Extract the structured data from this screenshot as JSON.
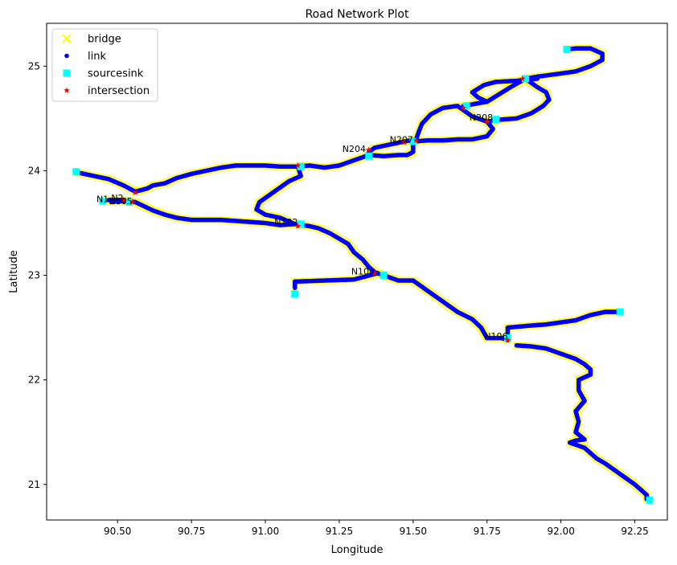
{
  "chart_data": {
    "type": "scatter",
    "title": "Road Network Plot",
    "xlabel": "Longitude",
    "ylabel": "Latitude",
    "xlim": [
      90.26,
      92.36
    ],
    "ylim": [
      20.66,
      25.41
    ],
    "xticks": [
      90.5,
      90.75,
      91.0,
      91.25,
      91.5,
      91.75,
      92.0,
      92.25
    ],
    "xtick_labels": [
      "90.50",
      "90.75",
      "91.00",
      "91.25",
      "91.50",
      "91.75",
      "92.00",
      "92.25"
    ],
    "yticks": [
      21,
      22,
      23,
      24,
      25
    ],
    "ytick_labels": [
      "21",
      "22",
      "23",
      "24",
      "25"
    ],
    "grid": false,
    "legend": {
      "position": "top-left",
      "entries": [
        {
          "label": "bridge",
          "marker": "x",
          "color": "#ffff00"
        },
        {
          "label": "link",
          "marker": "circle",
          "color": "#0000ff"
        },
        {
          "label": "sourcesink",
          "marker": "square",
          "color": "#00ffff"
        },
        {
          "label": "intersection",
          "marker": "star",
          "color": "#ff0000"
        }
      ]
    },
    "roads": [
      {
        "name": "main",
        "points": [
          [
            90.37,
            23.98
          ],
          [
            90.42,
            23.95
          ],
          [
            90.47,
            23.92
          ],
          [
            90.52,
            23.86
          ],
          [
            90.56,
            23.8
          ],
          [
            90.6,
            23.83
          ],
          [
            90.62,
            23.86
          ],
          [
            90.66,
            23.88
          ],
          [
            90.7,
            23.93
          ],
          [
            90.75,
            23.97
          ],
          [
            90.8,
            24.0
          ],
          [
            90.85,
            24.03
          ],
          [
            90.9,
            24.05
          ],
          [
            91.0,
            24.05
          ],
          [
            91.05,
            24.04
          ],
          [
            91.1,
            24.04
          ],
          [
            91.15,
            24.05
          ],
          [
            91.2,
            24.03
          ],
          [
            91.25,
            24.05
          ],
          [
            91.3,
            24.1
          ],
          [
            91.35,
            24.15
          ],
          [
            91.4,
            24.14
          ],
          [
            91.45,
            24.15
          ],
          [
            91.48,
            24.15
          ],
          [
            91.5,
            24.18
          ],
          [
            91.5,
            24.28
          ],
          [
            91.55,
            24.29
          ],
          [
            91.6,
            24.29
          ],
          [
            91.65,
            24.3
          ],
          [
            91.7,
            24.3
          ],
          [
            91.75,
            24.33
          ],
          [
            91.77,
            24.4
          ],
          [
            91.75,
            24.47
          ],
          [
            91.7,
            24.52
          ],
          [
            91.65,
            24.62
          ],
          [
            91.6,
            24.6
          ],
          [
            91.56,
            24.54
          ],
          [
            91.53,
            24.45
          ],
          [
            91.52,
            24.38
          ],
          [
            91.51,
            24.3
          ],
          [
            91.47,
            24.28
          ],
          [
            91.42,
            24.25
          ],
          [
            91.37,
            24.22
          ],
          [
            91.35,
            24.18
          ]
        ]
      },
      {
        "name": "north_loop",
        "points": [
          [
            91.67,
            24.62
          ],
          [
            91.75,
            24.66
          ],
          [
            91.83,
            24.8
          ],
          [
            91.88,
            24.88
          ],
          [
            91.92,
            24.9
          ],
          [
            92.0,
            24.93
          ],
          [
            92.05,
            24.95
          ],
          [
            92.1,
            25.0
          ],
          [
            92.14,
            25.06
          ],
          [
            92.14,
            25.12
          ],
          [
            92.1,
            25.17
          ],
          [
            92.05,
            25.17
          ],
          [
            92.02,
            25.16
          ]
        ]
      },
      {
        "name": "east_loop",
        "points": [
          [
            91.88,
            24.88
          ],
          [
            91.92,
            24.8
          ],
          [
            91.95,
            24.75
          ],
          [
            91.96,
            24.68
          ],
          [
            91.94,
            24.62
          ],
          [
            91.9,
            24.55
          ],
          [
            91.85,
            24.5
          ],
          [
            91.8,
            24.49
          ],
          [
            91.75,
            24.47
          ]
        ]
      },
      {
        "name": "left_pass",
        "points": [
          [
            91.92,
            24.88
          ],
          [
            91.85,
            24.86
          ],
          [
            91.78,
            24.85
          ],
          [
            91.74,
            24.82
          ],
          [
            91.7,
            24.75
          ],
          [
            91.72,
            24.7
          ],
          [
            91.75,
            24.66
          ]
        ]
      },
      {
        "name": "south_main",
        "points": [
          [
            90.47,
            23.72
          ],
          [
            90.52,
            23.72
          ],
          [
            90.56,
            23.7
          ],
          [
            90.62,
            23.62
          ],
          [
            90.66,
            23.58
          ],
          [
            90.7,
            23.55
          ],
          [
            90.75,
            23.53
          ],
          [
            90.85,
            23.53
          ],
          [
            90.95,
            23.51
          ],
          [
            91.0,
            23.5
          ],
          [
            91.05,
            23.48
          ],
          [
            91.1,
            23.49
          ],
          [
            91.15,
            23.47
          ],
          [
            91.18,
            23.45
          ],
          [
            91.22,
            23.4
          ],
          [
            91.25,
            23.35
          ],
          [
            91.28,
            23.3
          ],
          [
            91.3,
            23.22
          ],
          [
            91.33,
            23.15
          ],
          [
            91.35,
            23.08
          ],
          [
            91.37,
            23.03
          ],
          [
            91.4,
            23.0
          ],
          [
            91.45,
            22.95
          ],
          [
            91.5,
            22.95
          ],
          [
            91.55,
            22.85
          ],
          [
            91.6,
            22.75
          ],
          [
            91.65,
            22.65
          ],
          [
            91.7,
            22.58
          ],
          [
            91.73,
            22.5
          ],
          [
            91.75,
            22.4
          ],
          [
            91.8,
            22.4
          ],
          [
            91.82,
            22.38
          ]
        ]
      },
      {
        "name": "northeast_spur",
        "points": [
          [
            91.82,
            22.45
          ],
          [
            91.82,
            22.5
          ],
          [
            91.9,
            22.52
          ],
          [
            91.95,
            22.53
          ],
          [
            92.0,
            22.55
          ],
          [
            92.05,
            22.57
          ],
          [
            92.1,
            22.62
          ],
          [
            92.15,
            22.65
          ],
          [
            92.2,
            22.65
          ]
        ]
      },
      {
        "name": "southeast",
        "points": [
          [
            91.85,
            22.33
          ],
          [
            91.9,
            22.32
          ],
          [
            91.95,
            22.3
          ],
          [
            92.0,
            22.25
          ],
          [
            92.05,
            22.2
          ],
          [
            92.08,
            22.15
          ],
          [
            92.1,
            22.1
          ],
          [
            92.1,
            22.05
          ],
          [
            92.06,
            22.0
          ],
          [
            92.06,
            21.9
          ],
          [
            92.08,
            21.8
          ],
          [
            92.05,
            21.7
          ],
          [
            92.06,
            21.6
          ],
          [
            92.05,
            21.5
          ],
          [
            92.08,
            21.43
          ],
          [
            92.05,
            21.42
          ],
          [
            92.03,
            21.4
          ],
          [
            92.08,
            21.35
          ],
          [
            92.12,
            21.25
          ],
          [
            92.15,
            21.2
          ],
          [
            92.2,
            21.1
          ],
          [
            92.25,
            21.0
          ],
          [
            92.29,
            20.9
          ],
          [
            92.29,
            20.86
          ]
        ]
      },
      {
        "name": "southwest_spur",
        "points": [
          [
            91.38,
            23.02
          ],
          [
            91.3,
            22.96
          ],
          [
            91.2,
            22.95
          ],
          [
            91.1,
            22.94
          ],
          [
            91.1,
            22.88
          ]
        ]
      },
      {
        "name": "mid_link",
        "points": [
          [
            91.11,
            24.04
          ],
          [
            91.12,
            23.95
          ],
          [
            91.08,
            23.9
          ],
          [
            91.03,
            23.8
          ],
          [
            90.98,
            23.7
          ],
          [
            90.97,
            23.63
          ],
          [
            91.0,
            23.58
          ],
          [
            91.05,
            23.55
          ],
          [
            91.1,
            23.49
          ]
        ]
      },
      {
        "name": "west_spur",
        "points": [
          [
            90.48,
            23.7
          ],
          [
            90.5,
            23.71
          ],
          [
            90.54,
            23.71
          ]
        ]
      }
    ],
    "sourcesinks": [
      [
        90.36,
        23.99
      ],
      [
        90.45,
        23.71
      ],
      [
        90.54,
        23.7
      ],
      [
        91.1,
        22.82
      ],
      [
        91.35,
        24.14
      ],
      [
        91.4,
        23.0
      ],
      [
        91.5,
        24.28
      ],
      [
        91.68,
        24.62
      ],
      [
        91.78,
        24.49
      ],
      [
        91.88,
        24.88
      ],
      [
        92.02,
        25.16
      ],
      [
        91.82,
        22.4
      ],
      [
        92.2,
        22.65
      ],
      [
        92.3,
        20.85
      ],
      [
        91.12,
        24.04
      ],
      [
        91.12,
        23.49
      ]
    ],
    "intersections": [
      [
        90.52,
        23.72
      ],
      [
        90.55,
        23.7
      ],
      [
        90.56,
        23.79
      ],
      [
        91.11,
        23.47
      ],
      [
        91.11,
        24.05
      ],
      [
        91.35,
        24.2
      ],
      [
        91.37,
        23.02
      ],
      [
        91.47,
        24.27
      ],
      [
        91.51,
        24.29
      ],
      [
        91.67,
        24.6
      ],
      [
        91.75,
        24.47
      ],
      [
        91.82,
        22.38
      ],
      [
        91.87,
        24.88
      ]
    ],
    "annotations": [
      {
        "text": "N1",
        "x": 90.47,
        "y": 23.7
      },
      {
        "text": "N2",
        "x": 90.52,
        "y": 23.71
      },
      {
        "text": "N105",
        "x": 90.55,
        "y": 23.68
      },
      {
        "text": "N102",
        "x": 91.11,
        "y": 23.48
      },
      {
        "text": "N204",
        "x": 91.34,
        "y": 24.18
      },
      {
        "text": "N207",
        "x": 91.5,
        "y": 24.27
      },
      {
        "text": "N208",
        "x": 91.77,
        "y": 24.48
      },
      {
        "text": "N104",
        "x": 91.37,
        "y": 23.01
      },
      {
        "text": "N106",
        "x": 91.82,
        "y": 22.39
      }
    ]
  }
}
